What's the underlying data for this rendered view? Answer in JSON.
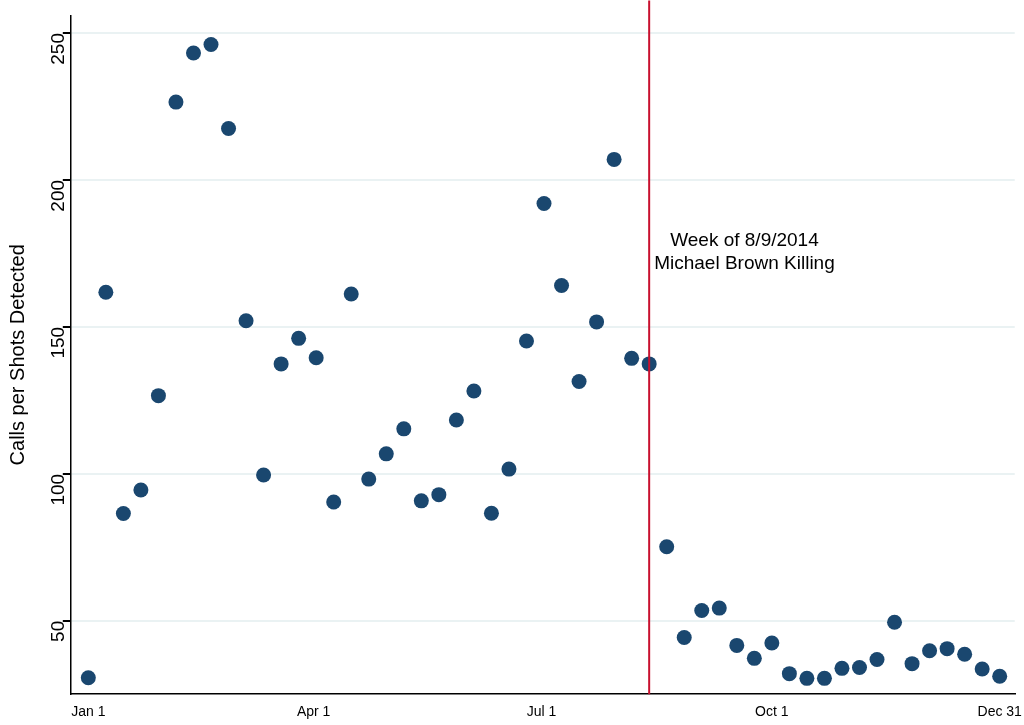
{
  "chart_data": {
    "type": "scatter",
    "ylabel": "Calls per Shots Detected",
    "x": [
      "2014-01-01",
      "2014-01-08",
      "2014-01-15",
      "2014-01-22",
      "2014-01-29",
      "2014-02-05",
      "2014-02-12",
      "2014-02-19",
      "2014-02-26",
      "2014-03-05",
      "2014-03-12",
      "2014-03-19",
      "2014-03-26",
      "2014-04-02",
      "2014-04-09",
      "2014-04-16",
      "2014-04-23",
      "2014-04-30",
      "2014-05-07",
      "2014-05-14",
      "2014-05-21",
      "2014-05-28",
      "2014-06-04",
      "2014-06-11",
      "2014-06-18",
      "2014-06-25",
      "2014-07-02",
      "2014-07-09",
      "2014-07-16",
      "2014-07-23",
      "2014-07-30",
      "2014-08-06",
      "2014-08-13",
      "2014-08-20",
      "2014-08-27",
      "2014-09-03",
      "2014-09-10",
      "2014-09-17",
      "2014-09-24",
      "2014-10-01",
      "2014-10-08",
      "2014-10-15",
      "2014-10-22",
      "2014-10-29",
      "2014-11-05",
      "2014-11-12",
      "2014-11-19",
      "2014-11-26",
      "2014-12-03",
      "2014-12-10",
      "2014-12-17",
      "2014-12-24",
      "2014-12-31"
    ],
    "series": [
      {
        "color": "#1a476f",
        "values": [
          30.6,
          161.8,
          86.5,
          94.5,
          126.6,
          226.5,
          243.2,
          246.1,
          217.5,
          152.1,
          99.6,
          137.4,
          146.1,
          139.5,
          90.4,
          161.2,
          98.2,
          106.8,
          115.3,
          90.8,
          92.9,
          118.3,
          128.2,
          86.6,
          101.6,
          145.2,
          192.0,
          164.1,
          131.4,
          151.7,
          207.0,
          139.3,
          137.4,
          75.2,
          44.3,
          53.5,
          54.3,
          41.6,
          37.2,
          42.4,
          32.0,
          30.4,
          30.4,
          33.8,
          34.1,
          36.8,
          49.5,
          35.4,
          39.8,
          40.5,
          38.6,
          33.6,
          31.1
        ]
      }
    ],
    "xlim": [
      "2013-12-25",
      "2015-01-06"
    ],
    "xticks": [
      {
        "value": "2014-01-01",
        "label": "Jan 1"
      },
      {
        "value": "2014-04-01",
        "label": "Apr 1"
      },
      {
        "value": "2014-07-01",
        "label": "Jul 1"
      },
      {
        "value": "2014-10-01",
        "label": "Oct 1"
      },
      {
        "value": "2014-12-31",
        "label": "Dec 31"
      }
    ],
    "ylim": [
      25,
      256
    ],
    "yticks": [
      50,
      100,
      150,
      200,
      250
    ],
    "grid": "y",
    "legend": false,
    "marker": "circle",
    "ref_lines": [
      {
        "axis": "x",
        "value": "2014-08-13",
        "label": "Week of 8/9/2014\nMichael Brown Killing",
        "color": "#c8102e"
      }
    ]
  }
}
